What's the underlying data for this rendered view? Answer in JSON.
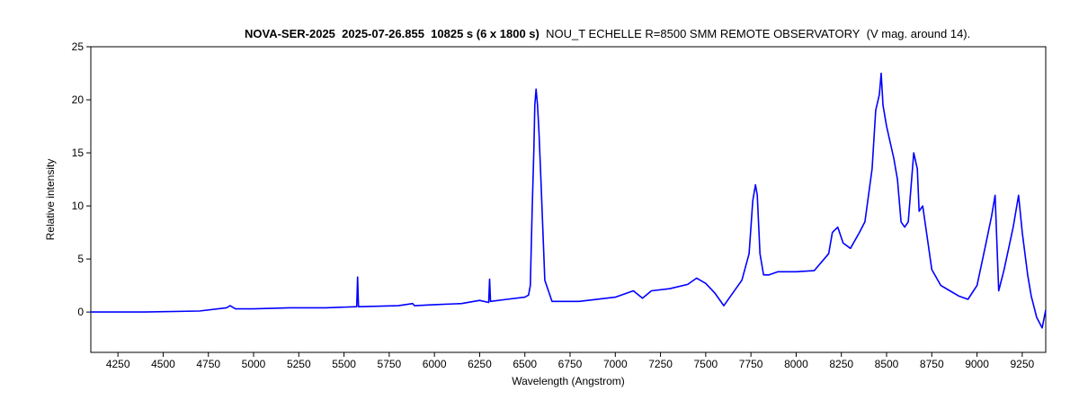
{
  "chart_data": {
    "type": "line",
    "title_bold_parts": [
      "NOVA-SER-2025",
      "2025-07-26.855",
      "10825 s (6 x 1800 s)"
    ],
    "title_normal_parts": [
      "NOU_T ECHELLE R=8500 SMM REMOTE OBSERVATORY",
      "(V mag. around 14)."
    ],
    "xlabel": "Wavelength (Angstrom)",
    "ylabel": "Relative intensity",
    "xlim": [
      4100,
      9380
    ],
    "ylim": [
      -3.8,
      25
    ],
    "xticks": [
      4250,
      4500,
      4750,
      5000,
      5250,
      5500,
      5750,
      6000,
      6250,
      6500,
      6750,
      7000,
      7250,
      7500,
      7750,
      8000,
      8250,
      8500,
      8750,
      9000,
      9250
    ],
    "yticks": [
      0,
      5,
      10,
      15,
      20,
      25
    ],
    "grid": false,
    "legend": "none",
    "line_color": "#0000ff",
    "series": [
      {
        "x": [
          4100,
          4400,
          4700,
          4850,
          4870,
          4900,
          5000,
          5200,
          5400,
          5570,
          5575,
          5580,
          5585,
          5800,
          5880,
          5890,
          6000,
          6150,
          6250,
          6300,
          6305,
          6310,
          6400,
          6500,
          6520,
          6530,
          6540,
          6550,
          6555,
          6562,
          6570,
          6578,
          6590,
          6610,
          6650,
          6800,
          7000,
          7100,
          7150,
          7200,
          7300,
          7400,
          7450,
          7500,
          7550,
          7600,
          7650,
          7700,
          7740,
          7760,
          7775,
          7785,
          7800,
          7820,
          7850,
          7900,
          8000,
          8100,
          8180,
          8200,
          8230,
          8260,
          8300,
          8350,
          8380,
          8420,
          8440,
          8460,
          8470,
          8480,
          8500,
          8520,
          8540,
          8560,
          8580,
          8600,
          8620,
          8650,
          8670,
          8680,
          8700,
          8750,
          8800,
          8850,
          8900,
          8950,
          9000,
          9050,
          9080,
          9100,
          9120,
          9150,
          9200,
          9230,
          9250,
          9280,
          9300,
          9330,
          9360,
          9380
        ],
        "y": [
          0,
          0,
          0.1,
          0.4,
          0.6,
          0.3,
          0.3,
          0.4,
          0.4,
          0.5,
          3.3,
          0.5,
          0.5,
          0.6,
          0.8,
          0.6,
          0.7,
          0.8,
          1.1,
          0.9,
          3.1,
          1.0,
          1.2,
          1.4,
          1.6,
          2.5,
          9.5,
          15.5,
          19.5,
          21.0,
          19.5,
          17.0,
          12.0,
          3.0,
          1.0,
          1.0,
          1.4,
          2.0,
          1.3,
          2.0,
          2.2,
          2.6,
          3.2,
          2.7,
          1.8,
          0.6,
          1.8,
          3.0,
          5.5,
          10.5,
          12.0,
          11.0,
          5.5,
          3.5,
          3.5,
          3.8,
          3.8,
          3.9,
          5.5,
          7.5,
          8.0,
          6.5,
          6.0,
          7.5,
          8.5,
          13.5,
          19.0,
          20.5,
          22.5,
          19.5,
          17.5,
          16.0,
          14.5,
          12.5,
          8.5,
          8.0,
          8.5,
          15.0,
          13.5,
          9.5,
          10.0,
          4.0,
          2.5,
          2.0,
          1.5,
          1.2,
          2.5,
          6.5,
          9.0,
          11.0,
          2.0,
          4.0,
          8.0,
          11.0,
          7.5,
          3.5,
          1.5,
          -0.5,
          -1.5,
          0.2
        ]
      }
    ]
  }
}
